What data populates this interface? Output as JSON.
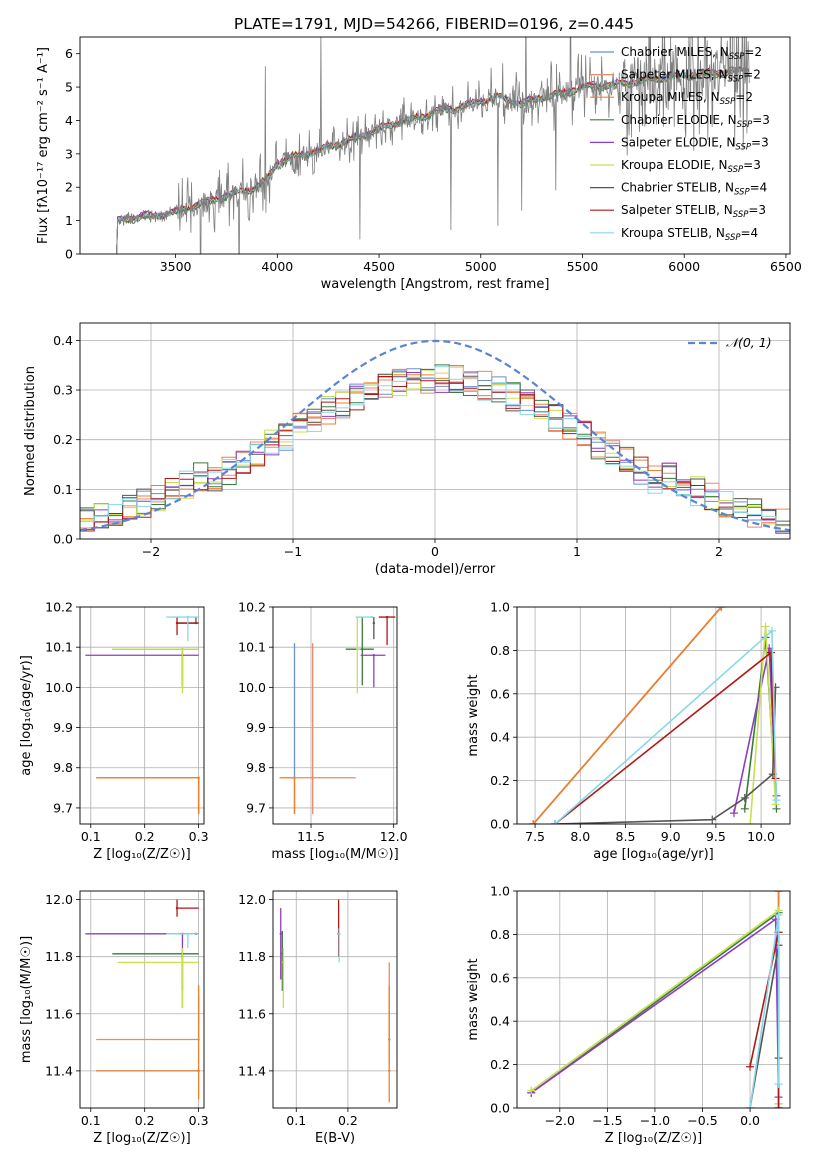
{
  "figure_title": "PLATE=1791, MJD=54266, FIBERID=0196, z=0.445",
  "colors": {
    "chabrier_miles": "#6a8fd8",
    "salpeter_miles": "#ee8866",
    "kroupa_miles": "#f07f2a",
    "chabrier_elodie": "#3c7a3c",
    "salpeter_elodie": "#8e3cc4",
    "kroupa_elodie": "#c8e050",
    "chabrier_stelib": "#555555",
    "salpeter_stelib": "#b01818",
    "kroupa_stelib": "#88d8e8",
    "data": "#7f7f7f",
    "grid": "#b0b0b0",
    "normal": "#5b84d6"
  },
  "chart_data": [
    {
      "type": "line",
      "id": "spectrum",
      "title": "PLATE=1791, MJD=54266, FIBERID=0196, z=0.445",
      "xlabel": "wavelength [Angstrom, rest frame]",
      "ylabel": "Flux [fλ10⁻¹⁷ erg cm⁻² s⁻¹ A⁻¹]",
      "xlim": [
        3030,
        6520
      ],
      "ylim": [
        0,
        6.5
      ],
      "xticks": [
        3500,
        4000,
        4500,
        5000,
        5500,
        6000,
        6500
      ],
      "yticks": [
        0,
        1,
        2,
        3,
        4,
        5,
        6
      ],
      "grid": false,
      "legend_position": "upper-right",
      "legend": [
        {
          "key": "chabrier_miles",
          "label": "Chabrier MILES, N",
          "sub": "SSP",
          "tail": "=2"
        },
        {
          "key": "salpeter_miles",
          "label": "Salpeter MILES, N",
          "sub": "SSP",
          "tail": "=2"
        },
        {
          "key": "kroupa_miles",
          "label": "Kroupa MILES, N",
          "sub": "SSP",
          "tail": "=2"
        },
        {
          "key": "chabrier_elodie",
          "label": "Chabrier ELODIE, N",
          "sub": "SSP",
          "tail": "=3"
        },
        {
          "key": "salpeter_elodie",
          "label": "Salpeter ELODIE, N",
          "sub": "SSP",
          "tail": "=3"
        },
        {
          "key": "kroupa_elodie",
          "label": "Kroupa ELODIE, N",
          "sub": "SSP",
          "tail": "=3"
        },
        {
          "key": "chabrier_stelib",
          "label": "Chabrier STELIB, N",
          "sub": "SSP",
          "tail": "=4"
        },
        {
          "key": "salpeter_stelib",
          "label": "Salpeter STELIB, N",
          "sub": "SSP",
          "tail": "=3"
        },
        {
          "key": "kroupa_stelib",
          "label": "Kroupa STELIB, N",
          "sub": "SSP",
          "tail": "=4"
        }
      ],
      "continuum": {
        "x": [
          3200,
          3250,
          3300,
          3400,
          3500,
          3600,
          3700,
          3800,
          3900,
          3950,
          4000,
          4100,
          4200,
          4300,
          4400,
          4500,
          4600,
          4700,
          4800,
          4900,
          5000,
          5100,
          5200,
          5300,
          5400,
          5500,
          5600,
          5700,
          5800,
          5900,
          6000,
          6100,
          6200,
          6300
        ],
        "y": [
          0.95,
          1.05,
          1.1,
          1.15,
          1.25,
          1.45,
          1.65,
          1.85,
          2.0,
          2.25,
          2.75,
          2.95,
          3.1,
          3.3,
          3.5,
          3.75,
          3.95,
          4.1,
          4.3,
          4.4,
          4.6,
          4.7,
          4.5,
          4.7,
          4.8,
          5.0,
          5.05,
          5.1,
          5.2,
          5.3,
          5.35,
          5.4,
          5.45,
          5.5
        ]
      }
    },
    {
      "type": "step",
      "id": "residuals",
      "xlabel": "(data-model)/error",
      "ylabel": "Normed distribution",
      "xlim": [
        -2.5,
        2.5
      ],
      "ylim": [
        0,
        0.435
      ],
      "xticks": [
        -2,
        -1,
        0,
        1,
        2
      ],
      "yticks": [
        0.0,
        0.1,
        0.2,
        0.3,
        0.4
      ],
      "grid": true,
      "legend_position": "upper-right",
      "legend_label": "𝒩(0, 1)",
      "bin_edges_range": [
        -2.5,
        2.5
      ],
      "bins": 50
    },
    {
      "type": "errorbar",
      "id": "age_vs_z",
      "xlabel": "Z [log₁₀(Z/Z☉)]",
      "ylabel": "age  [log₁₀(age/yr)]",
      "xlim": [
        0.08,
        0.31
      ],
      "ylim": [
        9.66,
        10.2
      ],
      "xticks": [
        0.1,
        0.2,
        0.3
      ],
      "yticks": [
        9.7,
        9.8,
        9.9,
        10.0,
        10.1,
        10.2
      ],
      "grid": true,
      "points": [
        {
          "key": "chabrier_miles",
          "x": 0.3,
          "xerr": [
            0.0,
            0.0
          ],
          "y": 9.775,
          "yerr": [
            0.09,
            0.0
          ]
        },
        {
          "key": "salpeter_miles",
          "x": 0.3,
          "xerr": [
            0.19,
            0.0
          ],
          "y": 9.775,
          "yerr": [
            0.09,
            0.0
          ]
        },
        {
          "key": "kroupa_miles",
          "x": 0.3,
          "xerr": [
            0.19,
            0.0
          ],
          "y": 9.775,
          "yerr": [
            0.09,
            0.0
          ]
        },
        {
          "key": "chabrier_elodie",
          "x": 0.27,
          "xerr": [
            0.13,
            0.03
          ],
          "y": 10.095,
          "yerr": [
            0.09,
            0.0
          ]
        },
        {
          "key": "salpeter_elodie",
          "x": 0.27,
          "xerr": [
            0.18,
            0.03
          ],
          "y": 10.08,
          "yerr": [
            0.08,
            0.0
          ]
        },
        {
          "key": "kroupa_elodie",
          "x": 0.27,
          "xerr": [
            0.13,
            0.03
          ],
          "y": 10.095,
          "yerr": [
            0.11,
            0.0
          ]
        },
        {
          "key": "chabrier_stelib",
          "x": 0.295,
          "xerr": [
            0.035,
            0.005
          ],
          "y": 10.16,
          "yerr": [
            0.0,
            0.015
          ]
        },
        {
          "key": "salpeter_stelib",
          "x": 0.26,
          "xerr": [
            0.0,
            0.04
          ],
          "y": 10.16,
          "yerr": [
            0.03,
            0.015
          ]
        },
        {
          "key": "kroupa_stelib",
          "x": 0.28,
          "xerr": [
            0.04,
            0.02
          ],
          "y": 10.175,
          "yerr": [
            0.06,
            0.0
          ]
        }
      ]
    },
    {
      "type": "errorbar",
      "id": "age_vs_mass",
      "xlabel": "mass [log₁₀(M/M☉)]",
      "ylabel": "",
      "xlim": [
        11.27,
        12.02
      ],
      "ylim": [
        9.66,
        10.2
      ],
      "xticks": [
        11.5,
        12.0
      ],
      "yticks": [
        9.7,
        9.8,
        9.9,
        10.0,
        10.1,
        10.2
      ],
      "grid": true,
      "points": [
        {
          "key": "chabrier_miles",
          "x": 11.4,
          "xerr": [
            0.0,
            0.0
          ],
          "y": 9.775,
          "yerr": [
            0.09,
            0.335
          ]
        },
        {
          "key": "salpeter_miles",
          "x": 11.51,
          "xerr": [
            0.11,
            0.26
          ],
          "y": 9.775,
          "yerr": [
            0.09,
            0.335
          ]
        },
        {
          "key": "kroupa_miles",
          "x": 11.4,
          "xerr": [
            0.09,
            0.0
          ],
          "y": 9.775,
          "yerr": [
            0.09,
            0.0
          ]
        },
        {
          "key": "chabrier_elodie",
          "x": 11.81,
          "xerr": [
            0.1,
            0.07
          ],
          "y": 10.095,
          "yerr": [
            0.09,
            0.08
          ]
        },
        {
          "key": "salpeter_elodie",
          "x": 11.88,
          "xerr": [
            0.08,
            0.07
          ],
          "y": 10.08,
          "yerr": [
            0.08,
            0.0
          ]
        },
        {
          "key": "kroupa_elodie",
          "x": 11.78,
          "xerr": [
            0.0,
            0.02
          ],
          "y": 10.095,
          "yerr": [
            0.11,
            0.08
          ]
        },
        {
          "key": "chabrier_stelib",
          "x": 11.88,
          "xerr": [
            0.0,
            0.0
          ],
          "y": 10.16,
          "yerr": [
            0.04,
            0.015
          ]
        },
        {
          "key": "salpeter_stelib",
          "x": 11.96,
          "xerr": [
            0.05,
            0.05
          ],
          "y": 10.175,
          "yerr": [
            0.07,
            0.0
          ]
        },
        {
          "key": "kroupa_stelib",
          "x": 11.87,
          "xerr": [
            0.1,
            0.0
          ],
          "y": 10.175,
          "yerr": [
            0.0,
            0.0
          ]
        }
      ]
    },
    {
      "type": "line",
      "id": "weight_vs_age",
      "xlabel": "age  [log₁₀(age/yr)]",
      "ylabel": "mass weight",
      "xlim": [
        7.3,
        10.32
      ],
      "ylim": [
        0,
        1.0
      ],
      "xticks": [
        7.5,
        8.0,
        8.5,
        9.0,
        9.5,
        10.0
      ],
      "yticks": [
        0.0,
        0.2,
        0.4,
        0.6,
        0.8,
        1.0
      ],
      "grid": true,
      "series": [
        {
          "key": "chabrier_miles",
          "x": [
            7.48,
            9.56
          ],
          "y": [
            0.0,
            1.0
          ]
        },
        {
          "key": "salpeter_miles",
          "x": [
            7.48,
            9.56
          ],
          "y": [
            0.0,
            1.0
          ]
        },
        {
          "key": "kroupa_miles",
          "x": [
            7.48,
            9.56
          ],
          "y": [
            0.0,
            1.0
          ]
        },
        {
          "key": "chabrier_elodie",
          "x": [
            9.82,
            10.05,
            10.17
          ],
          "y": [
            0.07,
            0.86,
            0.07
          ]
        },
        {
          "key": "salpeter_elodie",
          "x": [
            9.7,
            10.09,
            10.17
          ],
          "y": [
            0.05,
            0.81,
            0.13
          ]
        },
        {
          "key": "kroupa_elodie",
          "x": [
            9.88,
            10.05,
            10.16
          ],
          "y": [
            0.0,
            0.91,
            0.09
          ]
        },
        {
          "key": "chabrier_stelib",
          "x": [
            7.72,
            9.46,
            9.82,
            10.13,
            10.16
          ],
          "y": [
            0.0,
            0.02,
            0.12,
            0.23,
            0.63
          ]
        },
        {
          "key": "salpeter_stelib",
          "x": [
            7.72,
            10.11,
            10.16
          ],
          "y": [
            0.0,
            0.79,
            0.21
          ]
        },
        {
          "key": "kroupa_stelib",
          "x": [
            7.72,
            10.12,
            10.17
          ],
          "y": [
            0.0,
            0.89,
            0.11
          ]
        }
      ]
    },
    {
      "type": "errorbar",
      "id": "mass_vs_z",
      "xlabel": "Z [log₁₀(Z/Z☉)]",
      "ylabel": "mass [log₁₀(M/M☉)]",
      "xlim": [
        0.08,
        0.31
      ],
      "ylim": [
        11.27,
        12.03
      ],
      "xticks": [
        0.1,
        0.2,
        0.3
      ],
      "yticks": [
        11.4,
        11.6,
        11.8,
        12.0
      ],
      "grid": true,
      "points": [
        {
          "key": "chabrier_miles",
          "x": 0.3,
          "xerr": [
            0.19,
            0.0
          ],
          "y": 11.4,
          "yerr": [
            0.0,
            0.0
          ]
        },
        {
          "key": "salpeter_miles",
          "x": 0.3,
          "xerr": [
            0.19,
            0.0
          ],
          "y": 11.51,
          "yerr": [
            0.0,
            0.15
          ]
        },
        {
          "key": "kroupa_miles",
          "x": 0.3,
          "xerr": [
            0.19,
            0.0
          ],
          "y": 11.4,
          "yerr": [
            0.1,
            0.3
          ]
        },
        {
          "key": "chabrier_elodie",
          "x": 0.27,
          "xerr": [
            0.13,
            0.03
          ],
          "y": 11.81,
          "yerr": [
            0.19,
            0.0
          ]
        },
        {
          "key": "salpeter_elodie",
          "x": 0.27,
          "xerr": [
            0.18,
            0.03
          ],
          "y": 11.88,
          "yerr": [
            0.2,
            0.0
          ]
        },
        {
          "key": "kroupa_elodie",
          "x": 0.27,
          "xerr": [
            0.12,
            0.03
          ],
          "y": 11.78,
          "yerr": [
            0.16,
            0.05
          ]
        },
        {
          "key": "chabrier_stelib",
          "x": 0.295,
          "xerr": [
            0.035,
            0.005
          ],
          "y": 11.88,
          "yerr": [
            0.0,
            0.0
          ]
        },
        {
          "key": "salpeter_stelib",
          "x": 0.26,
          "xerr": [
            0.0,
            0.04
          ],
          "y": 11.97,
          "yerr": [
            0.03,
            0.03
          ]
        },
        {
          "key": "kroupa_stelib",
          "x": 0.28,
          "xerr": [
            0.04,
            0.02
          ],
          "y": 11.88,
          "yerr": [
            0.05,
            0.0
          ]
        }
      ]
    },
    {
      "type": "errorbar",
      "id": "mass_vs_ebv",
      "xlabel": "E(B-V)",
      "ylabel": "",
      "xlim": [
        0.055,
        0.295
      ],
      "ylim": [
        11.27,
        12.03
      ],
      "xticks": [
        0.1,
        0.2
      ],
      "yticks": [
        11.4,
        11.6,
        11.8,
        12.0
      ],
      "grid": true,
      "points": [
        {
          "key": "chabrier_miles",
          "x": 0.28,
          "yerr": [
            0.08,
            0.13
          ],
          "y": 11.51
        },
        {
          "key": "salpeter_miles",
          "x": 0.28,
          "yerr": [
            0.09,
            0.27
          ],
          "y": 11.51
        },
        {
          "key": "kroupa_miles",
          "x": 0.28,
          "yerr": [
            0.11,
            0.3
          ],
          "y": 11.4
        },
        {
          "key": "chabrier_elodie",
          "x": 0.073,
          "yerr": [
            0.13,
            0.08
          ],
          "y": 11.81
        },
        {
          "key": "salpeter_elodie",
          "x": 0.07,
          "yerr": [
            0.16,
            0.09
          ],
          "y": 11.88
        },
        {
          "key": "kroupa_elodie",
          "x": 0.075,
          "yerr": [
            0.16,
            0.05
          ],
          "y": 11.78
        },
        {
          "key": "chabrier_stelib",
          "x": 0.183,
          "yerr": [
            0.0,
            0.0
          ],
          "y": 11.88
        },
        {
          "key": "salpeter_stelib",
          "x": 0.182,
          "yerr": [
            0.08,
            0.12
          ],
          "y": 11.88
        },
        {
          "key": "kroupa_stelib",
          "x": 0.183,
          "yerr": [
            0.1,
            0.02
          ],
          "y": 11.88
        }
      ]
    },
    {
      "type": "line",
      "id": "weight_vs_z",
      "xlabel": "Z [log₁₀(Z/Z☉)]",
      "ylabel": "mass weight",
      "xlim": [
        -2.45,
        0.42
      ],
      "ylim": [
        0,
        1.0
      ],
      "xticks": [
        -2.0,
        -1.5,
        -1.0,
        -0.5,
        0.0
      ],
      "yticks": [
        0.0,
        0.2,
        0.4,
        0.6,
        0.8,
        1.0
      ],
      "grid": true,
      "series": [
        {
          "key": "chabrier_miles",
          "x": [
            0.3,
            0.3
          ],
          "y": [
            0.0,
            1.0
          ]
        },
        {
          "key": "salpeter_miles",
          "x": [
            0.3,
            0.3
          ],
          "y": [
            0.0,
            1.0
          ]
        },
        {
          "key": "kroupa_miles",
          "x": [
            0.3,
            0.3
          ],
          "y": [
            0.0,
            1.0
          ]
        },
        {
          "key": "chabrier_elodie",
          "x": [
            -2.3,
            0.3,
            0.3
          ],
          "y": [
            0.07,
            0.9,
            0.02
          ]
        },
        {
          "key": "salpeter_elodie",
          "x": [
            -2.3,
            0.27,
            0.3
          ],
          "y": [
            0.07,
            0.87,
            0.05
          ]
        },
        {
          "key": "kroupa_elodie",
          "x": [
            -2.3,
            0.3,
            0.3
          ],
          "y": [
            0.08,
            0.91,
            0.02
          ]
        },
        {
          "key": "chabrier_stelib",
          "x": [
            0.0,
            0.3,
            0.3
          ],
          "y": [
            0.0,
            0.75,
            0.23
          ]
        },
        {
          "key": "salpeter_stelib",
          "x": [
            0.0,
            0.3,
            0.3
          ],
          "y": [
            0.19,
            0.81,
            0.0
          ]
        },
        {
          "key": "kroupa_stelib",
          "x": [
            0.0,
            0.3,
            0.3
          ],
          "y": [
            0.0,
            0.89,
            0.11
          ]
        }
      ]
    }
  ]
}
